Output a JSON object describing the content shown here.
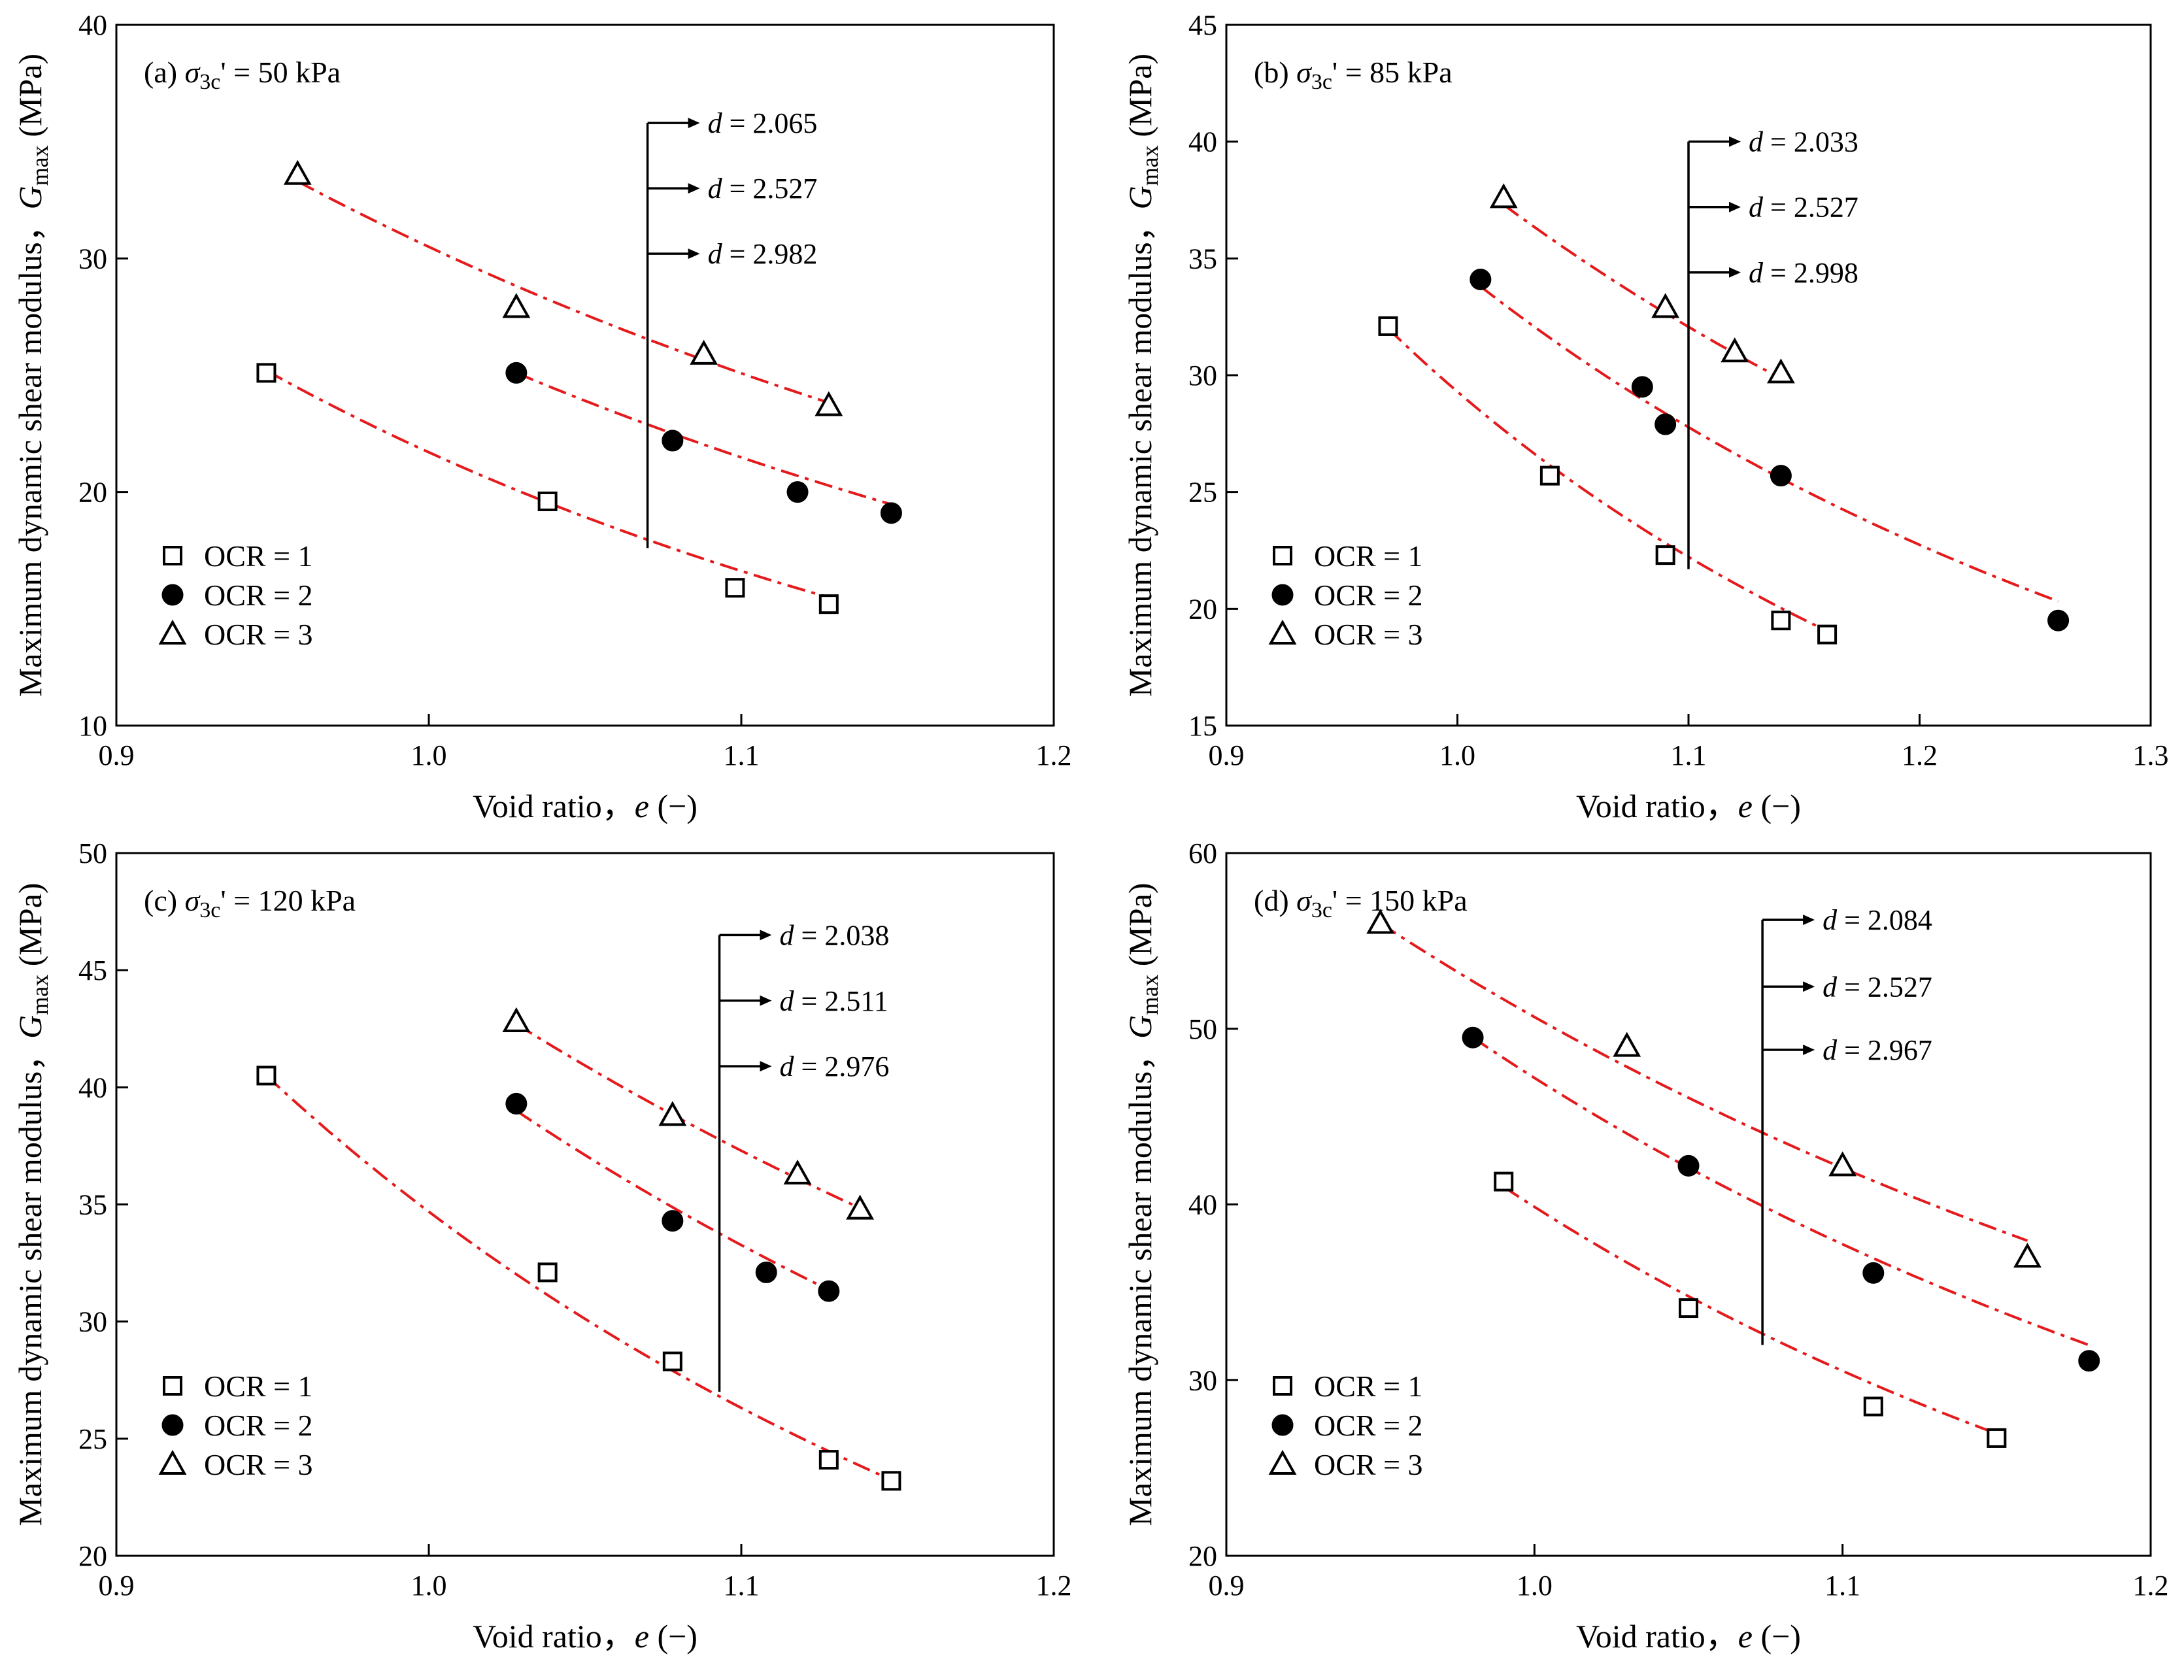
{
  "legend": [
    "OCR = 1",
    "OCR = 2",
    "OCR = 3"
  ],
  "chart_data": [
    {
      "type": "scatter",
      "panel": "a",
      "title": "(a) σ3c' = 50 kPa",
      "title_parts": {
        "prefix": "(a) ",
        "sym": "σ",
        "sub": "3c",
        "suffix": "' = 50 kPa"
      },
      "xlabel": "Void ratio，e (−)",
      "ylabel": "Maximum dynamic shear modulus，Gmax (MPa)",
      "xlim": [
        0.9,
        1.2
      ],
      "ylim": [
        10,
        40
      ],
      "xticks": [
        0.9,
        1.0,
        1.1,
        1.2
      ],
      "yticks": [
        10,
        20,
        30,
        40
      ],
      "xtick_labels": [
        "0.9",
        "1.0",
        "1.1",
        "1.2"
      ],
      "ytick_labels": [
        "10",
        "20",
        "30",
        "40"
      ],
      "legend_position": "lower-left",
      "series": [
        {
          "name": "OCR = 1",
          "marker": "square",
          "x": [
            0.948,
            1.038,
            1.098,
            1.128
          ],
          "y": [
            25.1,
            19.6,
            15.9,
            15.2
          ],
          "fit": {
            "x": [
              0.948,
              1.128
            ],
            "a": 25.2,
            "b": 2.8
          }
        },
        {
          "name": "OCR = 2",
          "marker": "circle",
          "x": [
            1.028,
            1.078,
            1.118,
            1.148
          ],
          "y": [
            25.1,
            22.2,
            20.0,
            19.1
          ],
          "fit": {
            "x": [
              1.028,
              1.148
            ],
            "a": 25.1,
            "b": 2.3
          }
        },
        {
          "name": "OCR = 3",
          "marker": "triangle",
          "x": [
            0.958,
            1.028,
            1.088,
            1.128
          ],
          "y": [
            33.6,
            27.9,
            25.9,
            23.7
          ],
          "fit": {
            "x": [
              0.958,
              1.128
            ],
            "a": 33.3,
            "b": 2.05
          }
        }
      ],
      "d_values": [
        "d = 2.065",
        "d = 2.527",
        "d = 2.982"
      ],
      "d_bracket": {
        "x": 1.07,
        "y_top": 35.8,
        "y_bottom": 17.6,
        "arrows_y": [
          35.8,
          33.0,
          30.2
        ]
      }
    },
    {
      "type": "scatter",
      "panel": "b",
      "title": "(b) σ3c' = 85 kPa",
      "title_parts": {
        "prefix": "(b) ",
        "sym": "σ",
        "sub": "3c",
        "suffix": "' = 85 kPa"
      },
      "xlabel": "Void ratio，e (−)",
      "ylabel": "Maximum dynamic shear modulus，Gmax (MPa)",
      "xlim": [
        0.9,
        1.3
      ],
      "ylim": [
        15,
        45
      ],
      "xticks": [
        0.9,
        1.0,
        1.1,
        1.2,
        1.3
      ],
      "yticks": [
        15,
        20,
        25,
        30,
        35,
        40,
        45
      ],
      "xtick_labels": [
        "0.9",
        "1.0",
        "1.1",
        "1.2",
        "1.3"
      ],
      "ytick_labels": [
        "15",
        "20",
        "25",
        "30",
        "35",
        "40",
        "45"
      ],
      "legend_position": "lower-left",
      "series": [
        {
          "name": "OCR = 1",
          "marker": "square",
          "x": [
            0.97,
            1.04,
            1.09,
            1.14,
            1.16
          ],
          "y": [
            32.1,
            25.7,
            22.3,
            19.5,
            18.9
          ],
          "fit": {
            "x": [
              0.97,
              1.16
            ],
            "a": 32.0,
            "b": 2.9
          }
        },
        {
          "name": "OCR = 2",
          "marker": "circle",
          "x": [
            1.01,
            1.08,
            1.09,
            1.14,
            1.26
          ],
          "y": [
            34.1,
            29.5,
            27.9,
            25.7,
            19.5
          ],
          "fit": {
            "x": [
              1.01,
              1.26
            ],
            "a": 33.8,
            "b": 2.3
          }
        },
        {
          "name": "OCR = 3",
          "marker": "triangle",
          "x": [
            1.02,
            1.09,
            1.12,
            1.14
          ],
          "y": [
            37.6,
            32.9,
            31.0,
            30.1
          ],
          "fit": {
            "x": [
              1.02,
              1.14
            ],
            "a": 37.3,
            "b": 2.0
          }
        }
      ],
      "d_values": [
        "d = 2.033",
        "d = 2.527",
        "d = 2.998"
      ],
      "d_bracket": {
        "x": 1.1,
        "y_top": 40.0,
        "y_bottom": 21.7,
        "arrows_y": [
          40.0,
          37.2,
          34.4
        ]
      }
    },
    {
      "type": "scatter",
      "panel": "c",
      "title": "(c) σ3c' = 120 kPa",
      "title_parts": {
        "prefix": "(c) ",
        "sym": "σ",
        "sub": "3c",
        "suffix": "' = 120 kPa"
      },
      "xlabel": "Void ratio，e (−)",
      "ylabel": "Maximum dynamic shear modulus，Gmax (MPa)",
      "xlim": [
        0.9,
        1.2
      ],
      "ylim": [
        20,
        50
      ],
      "xticks": [
        0.9,
        1.0,
        1.1,
        1.2
      ],
      "yticks": [
        20,
        25,
        30,
        35,
        40,
        45,
        50
      ],
      "xtick_labels": [
        "0.9",
        "1.0",
        "1.1",
        "1.2"
      ],
      "ytick_labels": [
        "20",
        "25",
        "30",
        "35",
        "40",
        "45",
        "50"
      ],
      "legend_position": "lower-left",
      "series": [
        {
          "name": "OCR = 1",
          "marker": "square",
          "x": [
            0.948,
            1.038,
            1.078,
            1.128,
            1.148
          ],
          "y": [
            40.5,
            32.1,
            28.3,
            24.1,
            23.2
          ],
          "fit": {
            "x": [
              0.948,
              1.148
            ],
            "a": 40.5,
            "b": 2.9
          }
        },
        {
          "name": "OCR = 2",
          "marker": "circle",
          "x": [
            1.028,
            1.078,
            1.108,
            1.128
          ],
          "y": [
            39.3,
            34.3,
            32.1,
            31.3
          ],
          "fit": {
            "x": [
              1.028,
              1.128
            ],
            "a": 39.0,
            "b": 2.35
          }
        },
        {
          "name": "OCR = 3",
          "marker": "triangle",
          "x": [
            1.028,
            1.078,
            1.118,
            1.138
          ],
          "y": [
            42.8,
            38.8,
            36.3,
            34.8
          ],
          "fit": {
            "x": [
              1.028,
              1.138
            ],
            "a": 42.7,
            "b": 2.0
          }
        }
      ],
      "d_values": [
        "d = 2.038",
        "d = 2.511",
        "d = 2.976"
      ],
      "d_bracket": {
        "x": 1.093,
        "y_top": 46.5,
        "y_bottom": 27.0,
        "arrows_y": [
          46.5,
          43.7,
          40.9
        ]
      }
    },
    {
      "type": "scatter",
      "panel": "d",
      "title": "(d) σ3c' = 150 kPa",
      "title_parts": {
        "prefix": "(d) ",
        "sym": "σ",
        "sub": "3c",
        "suffix": "' = 150 kPa"
      },
      "xlabel": "Void ratio，e (−)",
      "ylabel": "Maximum dynamic shear modulus，Gmax (MPa)",
      "xlim": [
        0.9,
        1.2
      ],
      "ylim": [
        20,
        60
      ],
      "xticks": [
        0.9,
        1.0,
        1.1,
        1.2
      ],
      "yticks": [
        20,
        30,
        40,
        50,
        60
      ],
      "xtick_labels": [
        "0.9",
        "1.0",
        "1.1",
        "1.2"
      ],
      "ytick_labels": [
        "20",
        "30",
        "40",
        "50",
        "60"
      ],
      "legend_position": "lower-left",
      "series": [
        {
          "name": "OCR = 1",
          "marker": "square",
          "x": [
            0.99,
            1.05,
            1.11,
            1.15
          ],
          "y": [
            41.3,
            34.1,
            28.5,
            26.7
          ],
          "fit": {
            "x": [
              0.99,
              1.15
            ],
            "a": 41.0,
            "b": 2.8
          }
        },
        {
          "name": "OCR = 2",
          "marker": "circle",
          "x": [
            0.98,
            1.05,
            1.11,
            1.18
          ],
          "y": [
            49.5,
            42.2,
            36.1,
            31.1
          ],
          "fit": {
            "x": [
              0.98,
              1.18
            ],
            "a": 49.5,
            "b": 2.35
          }
        },
        {
          "name": "OCR = 3",
          "marker": "triangle",
          "x": [
            0.95,
            1.03,
            1.1,
            1.16
          ],
          "y": [
            56.0,
            49.0,
            42.2,
            37.0
          ],
          "fit": {
            "x": [
              0.95,
              1.16
            ],
            "a": 56.0,
            "b": 1.95
          }
        }
      ],
      "d_values": [
        "d = 2.084",
        "d = 2.527",
        "d = 2.967"
      ],
      "d_bracket": {
        "x": 1.074,
        "y_top": 56.2,
        "y_bottom": 32.0,
        "arrows_y": [
          56.2,
          52.4,
          48.8
        ]
      }
    }
  ]
}
